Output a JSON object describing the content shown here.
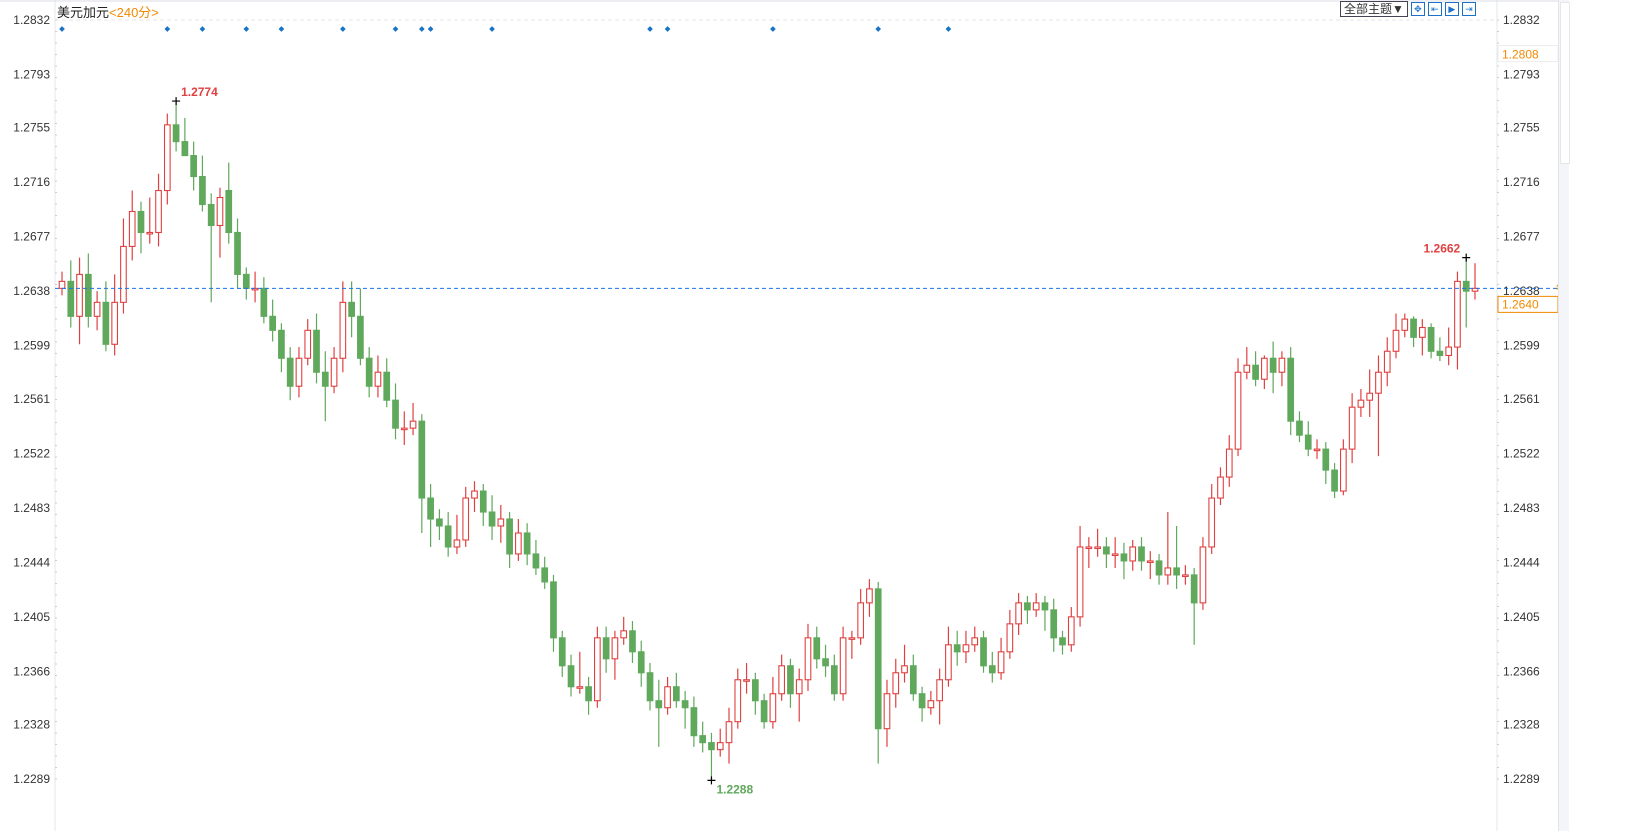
{
  "header": {
    "symbol": "美元加元",
    "period": "<240分>",
    "theme_button": "全部主题▼",
    "tool_icons": [
      "crosshair-icon",
      "zoom-range-icon",
      "play-icon",
      "scroll-end-icon"
    ]
  },
  "colors": {
    "up": "#e04040",
    "down": "#5fa85c",
    "last_line": "#1a73e8",
    "accent": "#f08a00",
    "event_dot": "#1a73c8"
  },
  "chart_data": {
    "type": "candlestick",
    "ylim": [
      1.2289,
      1.2832
    ],
    "y_ticks": [
      "1.2832",
      "1.2793",
      "1.2755",
      "1.2716",
      "1.2677",
      "1.2638",
      "1.2599",
      "1.2561",
      "1.2522",
      "1.2483",
      "1.2444",
      "1.2405",
      "1.2366",
      "1.2328",
      "1.2289"
    ],
    "high_label": "1.2774",
    "high_index": 13,
    "low_label": "1.2288",
    "low_index": 74,
    "recent_high_label": "1.2662",
    "recent_high_index": 160,
    "last_price": 1.264,
    "last_price_label": "1.2640",
    "crosshair_price_label": "1.2808",
    "crosshair_price": 1.2808,
    "event_marker_indices": [
      0,
      12,
      16,
      21,
      25,
      32,
      38,
      41,
      42,
      49,
      67,
      69,
      81,
      93,
      101
    ],
    "ohlc": [
      [
        1.264,
        1.2652,
        1.2635,
        1.2645
      ],
      [
        1.2645,
        1.266,
        1.2612,
        1.262
      ],
      [
        1.262,
        1.2662,
        1.26,
        1.265
      ],
      [
        1.265,
        1.2665,
        1.2612,
        1.262
      ],
      [
        1.262,
        1.2638,
        1.261,
        1.263
      ],
      [
        1.263,
        1.2645,
        1.2595,
        1.26
      ],
      [
        1.26,
        1.265,
        1.2592,
        1.263
      ],
      [
        1.263,
        1.269,
        1.2622,
        1.267
      ],
      [
        1.267,
        1.271,
        1.266,
        1.2695
      ],
      [
        1.2695,
        1.2702,
        1.2665,
        1.268
      ],
      [
        1.268,
        1.2705,
        1.2672,
        1.268
      ],
      [
        1.268,
        1.2722,
        1.267,
        1.271
      ],
      [
        1.271,
        1.2765,
        1.27,
        1.2757
      ],
      [
        1.2757,
        1.2774,
        1.2738,
        1.2745
      ],
      [
        1.2745,
        1.2762,
        1.2735,
        1.2735
      ],
      [
        1.2735,
        1.2745,
        1.271,
        1.272
      ],
      [
        1.272,
        1.2735,
        1.2695,
        1.27
      ],
      [
        1.27,
        1.2708,
        1.263,
        1.2685
      ],
      [
        1.2685,
        1.2712,
        1.2662,
        1.2705
      ],
      [
        1.271,
        1.273,
        1.2672,
        1.268
      ],
      [
        1.268,
        1.269,
        1.264,
        1.265
      ],
      [
        1.265,
        1.2655,
        1.2632,
        1.264
      ],
      [
        1.264,
        1.2652,
        1.263,
        1.264
      ],
      [
        1.264,
        1.2648,
        1.2615,
        1.262
      ],
      [
        1.262,
        1.2632,
        1.2602,
        1.261
      ],
      [
        1.261,
        1.2615,
        1.258,
        1.259
      ],
      [
        1.259,
        1.2598,
        1.256,
        1.257
      ],
      [
        1.257,
        1.2598,
        1.2562,
        1.259
      ],
      [
        1.259,
        1.2618,
        1.2585,
        1.261
      ],
      [
        1.261,
        1.2622,
        1.2572,
        1.258
      ],
      [
        1.258,
        1.2595,
        1.2545,
        1.257
      ],
      [
        1.257,
        1.2598,
        1.2565,
        1.259
      ],
      [
        1.259,
        1.2645,
        1.258,
        1.263
      ],
      [
        1.263,
        1.2645,
        1.2605,
        1.262
      ],
      [
        1.262,
        1.264,
        1.2585,
        1.259
      ],
      [
        1.259,
        1.2598,
        1.2562,
        1.257
      ],
      [
        1.257,
        1.2592,
        1.2562,
        1.258
      ],
      [
        1.258,
        1.259,
        1.2555,
        1.256
      ],
      [
        1.256,
        1.2572,
        1.2532,
        1.254
      ],
      [
        1.254,
        1.2552,
        1.2528,
        1.254
      ],
      [
        1.254,
        1.2558,
        1.2535,
        1.2545
      ],
      [
        1.2545,
        1.255,
        1.2465,
        1.249
      ],
      [
        1.249,
        1.25,
        1.2455,
        1.2475
      ],
      [
        1.2475,
        1.2482,
        1.246,
        1.247
      ],
      [
        1.247,
        1.248,
        1.2448,
        1.2455
      ],
      [
        1.2455,
        1.2478,
        1.245,
        1.246
      ],
      [
        1.246,
        1.2498,
        1.2455,
        1.249
      ],
      [
        1.249,
        1.2502,
        1.248,
        1.2495
      ],
      [
        1.2495,
        1.25,
        1.247,
        1.248
      ],
      [
        1.248,
        1.2492,
        1.246,
        1.247
      ],
      [
        1.247,
        1.2485,
        1.2458,
        1.2475
      ],
      [
        1.2475,
        1.248,
        1.244,
        1.245
      ],
      [
        1.245,
        1.2475,
        1.2445,
        1.2465
      ],
      [
        1.2465,
        1.2472,
        1.2442,
        1.245
      ],
      [
        1.245,
        1.246,
        1.2435,
        1.244
      ],
      [
        1.244,
        1.2448,
        1.2425,
        1.243
      ],
      [
        1.243,
        1.2435,
        1.238,
        1.239
      ],
      [
        1.239,
        1.2395,
        1.2362,
        1.237
      ],
      [
        1.237,
        1.2378,
        1.2348,
        1.2355
      ],
      [
        1.2355,
        1.238,
        1.235,
        1.2355
      ],
      [
        1.2355,
        1.2362,
        1.2335,
        1.2345
      ],
      [
        1.2345,
        1.2398,
        1.234,
        1.239
      ],
      [
        1.239,
        1.2398,
        1.2365,
        1.2375
      ],
      [
        1.2375,
        1.2395,
        1.236,
        1.239
      ],
      [
        1.239,
        1.2405,
        1.2385,
        1.2395
      ],
      [
        1.2395,
        1.2402,
        1.2372,
        1.238
      ],
      [
        1.238,
        1.2388,
        1.2355,
        1.2365
      ],
      [
        1.2365,
        1.2372,
        1.2338,
        1.2345
      ],
      [
        1.2345,
        1.236,
        1.2312,
        1.234
      ],
      [
        1.234,
        1.2362,
        1.2335,
        1.2355
      ],
      [
        1.2355,
        1.2365,
        1.234,
        1.2345
      ],
      [
        1.2345,
        1.2352,
        1.2325,
        1.234
      ],
      [
        1.234,
        1.2348,
        1.2312,
        1.232
      ],
      [
        1.232,
        1.233,
        1.2308,
        1.2315
      ],
      [
        1.2315,
        1.2322,
        1.2288,
        1.231
      ],
      [
        1.231,
        1.2325,
        1.2305,
        1.2315
      ],
      [
        1.2315,
        1.234,
        1.23,
        1.233
      ],
      [
        1.233,
        1.2368,
        1.2325,
        1.236
      ],
      [
        1.236,
        1.2372,
        1.235,
        1.236
      ],
      [
        1.236,
        1.2365,
        1.2335,
        1.2345
      ],
      [
        1.2345,
        1.235,
        1.2325,
        1.233
      ],
      [
        1.233,
        1.2362,
        1.2325,
        1.235
      ],
      [
        1.235,
        1.2378,
        1.2345,
        1.237
      ],
      [
        1.237,
        1.2375,
        1.234,
        1.235
      ],
      [
        1.235,
        1.2368,
        1.233,
        1.236
      ],
      [
        1.236,
        1.24,
        1.2352,
        1.239
      ],
      [
        1.239,
        1.2398,
        1.2368,
        1.2375
      ],
      [
        1.2375,
        1.2385,
        1.2362,
        1.237
      ],
      [
        1.237,
        1.2378,
        1.2345,
        1.235
      ],
      [
        1.235,
        1.2398,
        1.2345,
        1.239
      ],
      [
        1.239,
        1.2395,
        1.2375,
        1.239
      ],
      [
        1.239,
        1.2425,
        1.2385,
        1.2415
      ],
      [
        1.2415,
        1.2432,
        1.2405,
        1.2425
      ],
      [
        1.2425,
        1.243,
        1.23,
        1.2325
      ],
      [
        1.2325,
        1.236,
        1.2312,
        1.235
      ],
      [
        1.235,
        1.2375,
        1.234,
        1.2365
      ],
      [
        1.2365,
        1.2385,
        1.2358,
        1.237
      ],
      [
        1.237,
        1.2378,
        1.2345,
        1.235
      ],
      [
        1.235,
        1.2355,
        1.233,
        1.234
      ],
      [
        1.234,
        1.2352,
        1.2335,
        1.2345
      ],
      [
        1.2345,
        1.2368,
        1.2328,
        1.236
      ],
      [
        1.236,
        1.2398,
        1.2355,
        1.2385
      ],
      [
        1.2385,
        1.2395,
        1.237,
        1.238
      ],
      [
        1.238,
        1.2395,
        1.2372,
        1.2385
      ],
      [
        1.2385,
        1.2398,
        1.238,
        1.239
      ],
      [
        1.239,
        1.2395,
        1.2365,
        1.237
      ],
      [
        1.237,
        1.238,
        1.2358,
        1.2365
      ],
      [
        1.2365,
        1.239,
        1.236,
        1.238
      ],
      [
        1.238,
        1.241,
        1.2375,
        1.24
      ],
      [
        1.24,
        1.2422,
        1.2392,
        1.2415
      ],
      [
        1.2415,
        1.242,
        1.24,
        1.241
      ],
      [
        1.241,
        1.2422,
        1.2405,
        1.2415
      ],
      [
        1.2415,
        1.242,
        1.2395,
        1.241
      ],
      [
        1.241,
        1.2418,
        1.238,
        1.239
      ],
      [
        1.239,
        1.2395,
        1.2378,
        1.2385
      ],
      [
        1.2385,
        1.2412,
        1.238,
        1.2405
      ],
      [
        1.2405,
        1.247,
        1.2398,
        1.2455
      ],
      [
        1.2455,
        1.2462,
        1.244,
        1.2455
      ],
      [
        1.2455,
        1.2468,
        1.2448,
        1.2455
      ],
      [
        1.2455,
        1.2462,
        1.244,
        1.245
      ],
      [
        1.245,
        1.2462,
        1.244,
        1.245
      ],
      [
        1.245,
        1.2458,
        1.2432,
        1.2445
      ],
      [
        1.2445,
        1.246,
        1.2438,
        1.2455
      ],
      [
        1.2455,
        1.2462,
        1.2438,
        1.2445
      ],
      [
        1.2445,
        1.2452,
        1.2432,
        1.2445
      ],
      [
        1.2445,
        1.245,
        1.2428,
        1.2435
      ],
      [
        1.2435,
        1.248,
        1.2428,
        1.244
      ],
      [
        1.244,
        1.247,
        1.2425,
        1.2435
      ],
      [
        1.2435,
        1.2442,
        1.2428,
        1.2435
      ],
      [
        1.2435,
        1.244,
        1.2385,
        1.2415
      ],
      [
        1.2415,
        1.2462,
        1.241,
        1.2455
      ],
      [
        1.2455,
        1.25,
        1.245,
        1.249
      ],
      [
        1.249,
        1.2512,
        1.2485,
        1.2505
      ],
      [
        1.2505,
        1.2535,
        1.2498,
        1.2525
      ],
      [
        1.2525,
        1.259,
        1.252,
        1.258
      ],
      [
        1.258,
        1.2598,
        1.2575,
        1.2585
      ],
      [
        1.2585,
        1.2595,
        1.257,
        1.2575
      ],
      [
        1.2575,
        1.2592,
        1.2568,
        1.259
      ],
      [
        1.259,
        1.2602,
        1.2565,
        1.258
      ],
      [
        1.258,
        1.2595,
        1.257,
        1.259
      ],
      [
        1.259,
        1.2598,
        1.2535,
        1.2545
      ],
      [
        1.2545,
        1.2552,
        1.253,
        1.2535
      ],
      [
        1.2535,
        1.2545,
        1.252,
        1.2525
      ],
      [
        1.2525,
        1.2532,
        1.2518,
        1.2525
      ],
      [
        1.2525,
        1.253,
        1.25,
        1.251
      ],
      [
        1.251,
        1.2515,
        1.249,
        1.2495
      ],
      [
        1.2495,
        1.2532,
        1.2492,
        1.2525
      ],
      [
        1.2525,
        1.2565,
        1.2515,
        1.2555
      ],
      [
        1.2555,
        1.2568,
        1.2548,
        1.256
      ],
      [
        1.256,
        1.2582,
        1.2548,
        1.2565
      ],
      [
        1.2565,
        1.2592,
        1.252,
        1.258
      ],
      [
        1.258,
        1.2605,
        1.257,
        1.2595
      ],
      [
        1.2595,
        1.2622,
        1.259,
        1.261
      ],
      [
        1.261,
        1.2622,
        1.2605,
        1.2618
      ],
      [
        1.2618,
        1.262,
        1.2598,
        1.2605
      ],
      [
        1.2605,
        1.2618,
        1.2592,
        1.2612
      ],
      [
        1.2612,
        1.2615,
        1.259,
        1.2595
      ],
      [
        1.2595,
        1.2605,
        1.2588,
        1.2592
      ],
      [
        1.2592,
        1.2612,
        1.2585,
        1.2598
      ],
      [
        1.2598,
        1.2652,
        1.2582,
        1.2645
      ],
      [
        1.2645,
        1.2662,
        1.2612,
        1.2638
      ],
      [
        1.2638,
        1.2658,
        1.2632,
        1.264
      ]
    ]
  }
}
